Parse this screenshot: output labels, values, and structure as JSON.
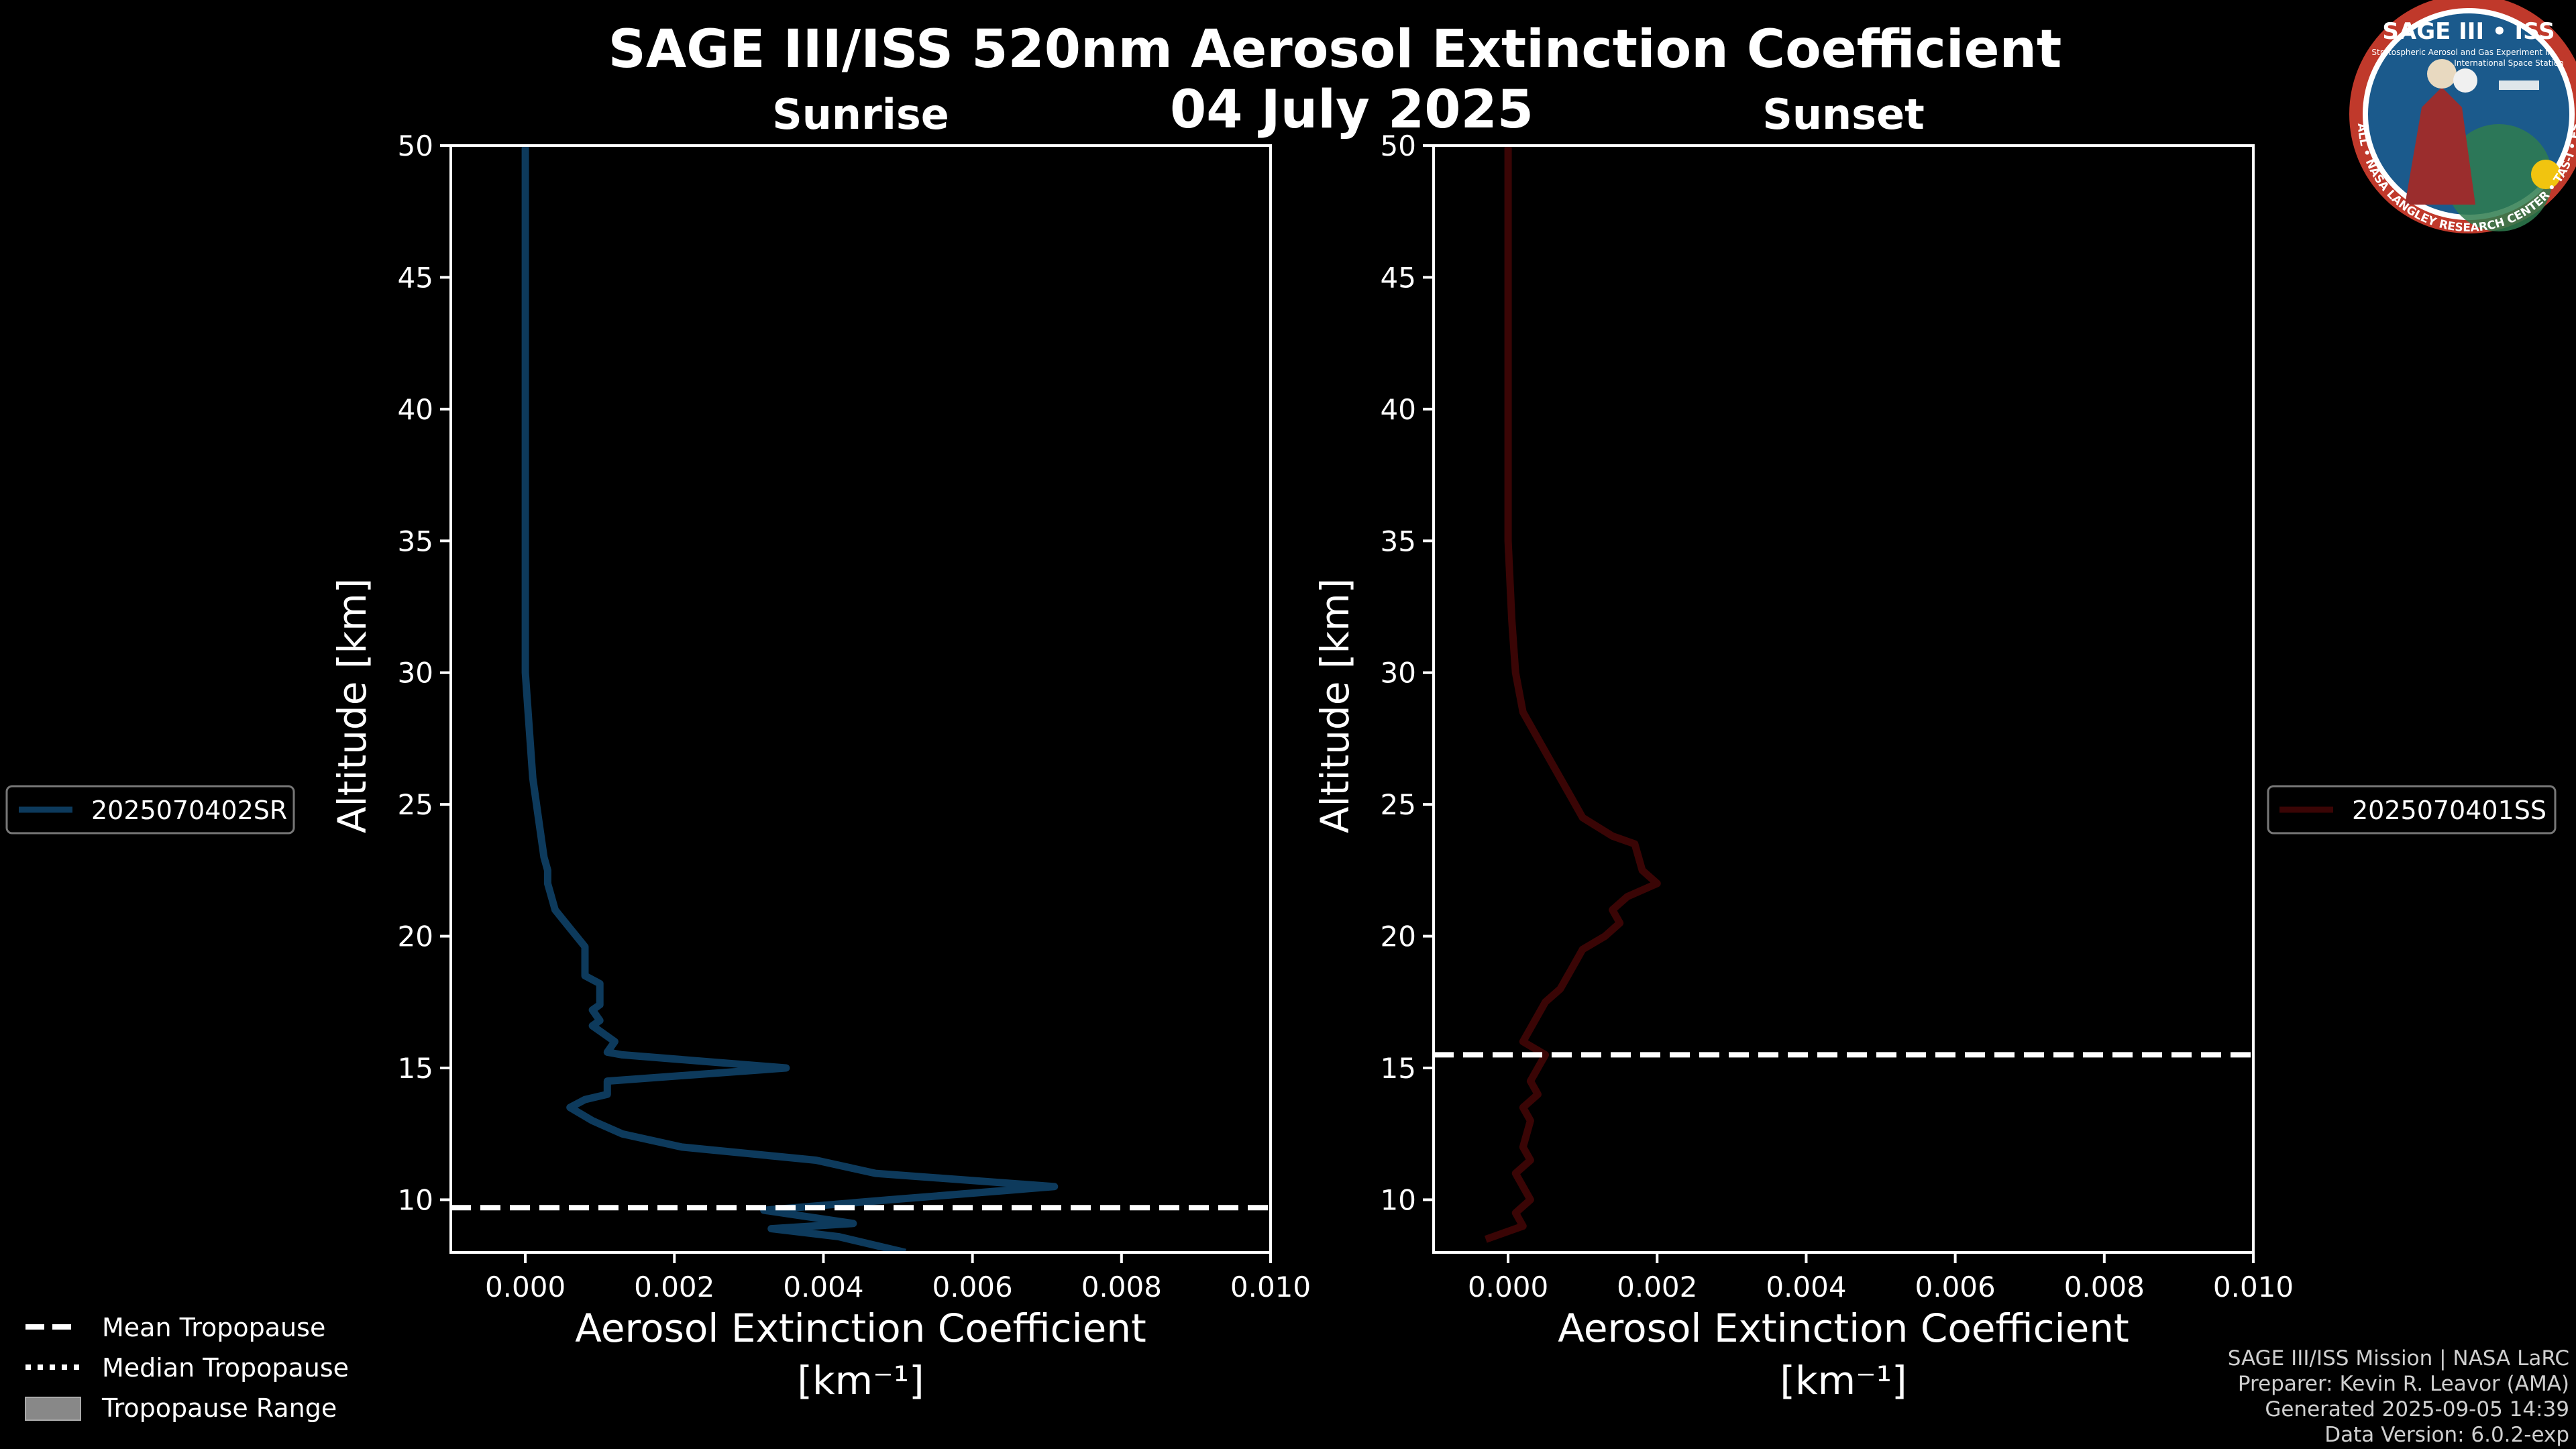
{
  "chart_data": {
    "type": "line",
    "title": "SAGE III/ISS 520nm Aerosol Extinction Coefficient",
    "date": "04 July 2025",
    "xlim": [
      -0.001,
      0.01
    ],
    "ylim": [
      8,
      50
    ],
    "xticks": [
      "0.000",
      "0.002",
      "0.004",
      "0.006",
      "0.008",
      "0.010"
    ],
    "xtick_values": [
      0,
      0.002,
      0.004,
      0.006,
      0.008,
      0.01
    ],
    "yticks": [
      "10",
      "15",
      "20",
      "25",
      "30",
      "35",
      "40",
      "45",
      "50"
    ],
    "ytick_values": [
      10,
      15,
      20,
      25,
      30,
      35,
      40,
      45,
      50
    ],
    "xlabel_line1": "Aerosol Extinction Coefficient",
    "xlabel_line2": "[km⁻¹]",
    "ylabel": "Altitude [km]",
    "panels": [
      {
        "subtitle": "Sunrise",
        "series_name": "2025070402SR",
        "color": "#0d3a5c",
        "mean_tropopause_km": 9.7,
        "points": [
          [
            0.0,
            50
          ],
          [
            0.0,
            45
          ],
          [
            0.0,
            40
          ],
          [
            0.0,
            35
          ],
          [
            0.0,
            30
          ],
          [
            5e-05,
            28
          ],
          [
            0.0001,
            26
          ],
          [
            0.0002,
            24
          ],
          [
            0.00025,
            23
          ],
          [
            0.0003,
            22.5
          ],
          [
            0.0003,
            22
          ],
          [
            0.0004,
            21
          ],
          [
            0.0006,
            20.3
          ],
          [
            0.0008,
            19.6
          ],
          [
            0.0008,
            18.5
          ],
          [
            0.001,
            18.2
          ],
          [
            0.001,
            17.4
          ],
          [
            0.0009,
            17.2
          ],
          [
            0.001,
            16.8
          ],
          [
            0.0009,
            16.6
          ],
          [
            0.0012,
            16
          ],
          [
            0.0011,
            15.6
          ],
          [
            0.0013,
            15.5
          ],
          [
            0.0035,
            15.0
          ],
          [
            0.0011,
            14.5
          ],
          [
            0.0011,
            14.0
          ],
          [
            0.0008,
            13.8
          ],
          [
            0.0006,
            13.5
          ],
          [
            0.0009,
            13.0
          ],
          [
            0.0013,
            12.5
          ],
          [
            0.0021,
            12.0
          ],
          [
            0.0039,
            11.5
          ],
          [
            0.0047,
            11.0
          ],
          [
            0.0071,
            10.5
          ],
          [
            0.0049,
            10.0
          ],
          [
            0.0032,
            9.6
          ],
          [
            0.0044,
            9.1
          ],
          [
            0.0033,
            8.9
          ],
          [
            0.0042,
            8.6
          ],
          [
            0.0051,
            8.0
          ]
        ]
      },
      {
        "subtitle": "Sunset",
        "series_name": "2025070401SS",
        "color": "#3a0505",
        "mean_tropopause_km": 15.5,
        "points": [
          [
            0.0,
            50
          ],
          [
            0.0,
            45
          ],
          [
            0.0,
            40
          ],
          [
            0.0,
            35
          ],
          [
            5e-05,
            32
          ],
          [
            0.0001,
            30
          ],
          [
            0.0002,
            28.5
          ],
          [
            0.0004,
            27.5
          ],
          [
            0.0006,
            26.5
          ],
          [
            0.0008,
            25.5
          ],
          [
            0.001,
            24.5
          ],
          [
            0.0014,
            23.8
          ],
          [
            0.0017,
            23.5
          ],
          [
            0.0018,
            22.5
          ],
          [
            0.002,
            22
          ],
          [
            0.0016,
            21.5
          ],
          [
            0.0014,
            21
          ],
          [
            0.0015,
            20.5
          ],
          [
            0.0013,
            20
          ],
          [
            0.001,
            19.5
          ],
          [
            0.0009,
            19
          ],
          [
            0.0008,
            18.5
          ],
          [
            0.0007,
            18
          ],
          [
            0.0005,
            17.5
          ],
          [
            0.0004,
            17
          ],
          [
            0.0003,
            16.5
          ],
          [
            0.0002,
            16
          ],
          [
            0.0005,
            15.5
          ],
          [
            0.0004,
            15
          ],
          [
            0.0003,
            14.5
          ],
          [
            0.0004,
            14
          ],
          [
            0.0002,
            13.5
          ],
          [
            0.0003,
            13
          ],
          [
            0.0002,
            12
          ],
          [
            0.0003,
            11.5
          ],
          [
            0.0001,
            11
          ],
          [
            0.0002,
            10.5
          ],
          [
            0.0003,
            10
          ],
          [
            0.0001,
            9.5
          ],
          [
            0.0002,
            9
          ],
          [
            -0.0003,
            8.5
          ]
        ]
      }
    ],
    "figure_legend": [
      {
        "label": "Mean Tropopause",
        "style": "dashed"
      },
      {
        "label": "Median Tropopause",
        "style": "dotted"
      },
      {
        "label": "Tropopause Range",
        "style": "box"
      }
    ]
  },
  "credits": [
    "SAGE III/ISS Mission | NASA LaRC",
    "Preparer: Kevin R. Leavor (AMA)",
    "Generated 2025-09-05 14:39",
    "Data Version: 6.0.2-exp"
  ],
  "badge": {
    "title": "SAGE III • ISS",
    "ring_text": "BALL • NASA LANGLEY RESEARCH CENTER • TAS-I • ESA",
    "line1": "Stratospheric Aerosol and Gas Experiment III",
    "line2": "International Space Station",
    "colors": {
      "ring": "#c0392b",
      "field": "#1b5a8c",
      "text": "#ffffff"
    }
  }
}
